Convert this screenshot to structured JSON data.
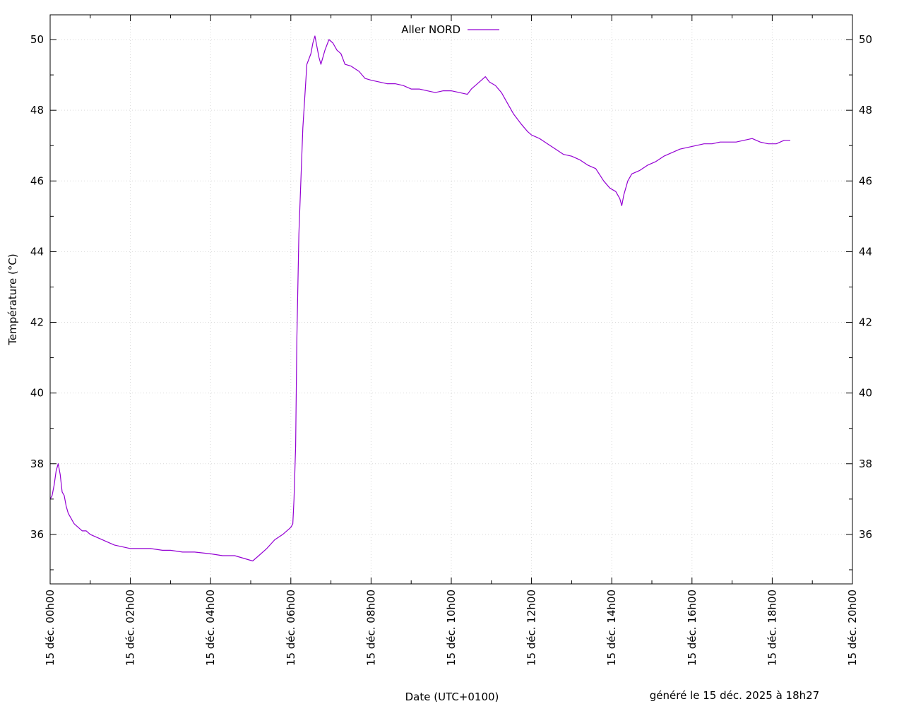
{
  "chart_data": {
    "type": "line",
    "xlabel": "Date (UTC+0100)",
    "ylabel": "Température (°C)",
    "footer": "généré le 15 déc. 2025 à 18h27",
    "xlim": [
      0,
      20
    ],
    "ylim": [
      34.6,
      50.7
    ],
    "x_ticks": [
      {
        "value": 0,
        "label": "15 déc. 00h00"
      },
      {
        "value": 2,
        "label": "15 déc. 02h00"
      },
      {
        "value": 4,
        "label": "15 déc. 04h00"
      },
      {
        "value": 6,
        "label": "15 déc. 06h00"
      },
      {
        "value": 8,
        "label": "15 déc. 08h00"
      },
      {
        "value": 10,
        "label": "15 déc. 10h00"
      },
      {
        "value": 12,
        "label": "15 déc. 12h00"
      },
      {
        "value": 14,
        "label": "15 déc. 14h00"
      },
      {
        "value": 16,
        "label": "15 déc. 16h00"
      },
      {
        "value": 18,
        "label": "15 déc. 18h00"
      },
      {
        "value": 20,
        "label": "15 déc. 20h00"
      }
    ],
    "y_ticks": [
      36,
      38,
      40,
      42,
      44,
      46,
      48,
      50
    ],
    "grid": true,
    "legend_position": "top-center",
    "series": [
      {
        "name": "Aller NORD",
        "color": "#9400d3",
        "x": [
          0.0,
          0.05,
          0.1,
          0.15,
          0.2,
          0.25,
          0.3,
          0.35,
          0.4,
          0.45,
          0.5,
          0.55,
          0.6,
          0.7,
          0.8,
          0.9,
          1.0,
          1.2,
          1.4,
          1.6,
          1.8,
          2.0,
          2.2,
          2.5,
          2.8,
          3.0,
          3.3,
          3.6,
          4.0,
          4.3,
          4.6,
          4.9,
          5.05,
          5.2,
          5.4,
          5.6,
          5.8,
          6.0,
          6.05,
          6.08,
          6.12,
          6.15,
          6.2,
          6.3,
          6.4,
          6.5,
          6.55,
          6.6,
          6.7,
          6.75,
          6.85,
          6.95,
          7.05,
          7.15,
          7.25,
          7.35,
          7.5,
          7.7,
          7.85,
          8.0,
          8.2,
          8.4,
          8.6,
          8.8,
          9.0,
          9.2,
          9.4,
          9.6,
          9.8,
          10.0,
          10.2,
          10.4,
          10.5,
          10.7,
          10.85,
          10.95,
          11.1,
          11.25,
          11.4,
          11.55,
          11.75,
          11.9,
          12.0,
          12.2,
          12.4,
          12.6,
          12.8,
          13.0,
          13.2,
          13.4,
          13.6,
          13.8,
          13.95,
          14.1,
          14.2,
          14.25,
          14.3,
          14.4,
          14.5,
          14.7,
          14.9,
          15.1,
          15.3,
          15.5,
          15.7,
          15.9,
          16.1,
          16.3,
          16.5,
          16.7,
          16.9,
          17.1,
          17.3,
          17.5,
          17.7,
          17.9,
          18.1,
          18.3,
          18.45
        ],
        "values": [
          37.0,
          37.1,
          37.4,
          37.8,
          38.0,
          37.7,
          37.2,
          37.1,
          36.8,
          36.6,
          36.5,
          36.4,
          36.3,
          36.2,
          36.1,
          36.1,
          36.0,
          35.9,
          35.8,
          35.7,
          35.65,
          35.6,
          35.6,
          35.6,
          35.55,
          35.55,
          35.5,
          35.5,
          35.45,
          35.4,
          35.4,
          35.3,
          35.25,
          35.4,
          35.6,
          35.85,
          36.0,
          36.2,
          36.3,
          37.0,
          38.5,
          41.5,
          44.5,
          47.5,
          49.3,
          49.6,
          49.9,
          50.1,
          49.5,
          49.3,
          49.7,
          50.0,
          49.9,
          49.7,
          49.6,
          49.3,
          49.25,
          49.1,
          48.9,
          48.85,
          48.8,
          48.75,
          48.75,
          48.7,
          48.6,
          48.6,
          48.55,
          48.5,
          48.55,
          48.55,
          48.5,
          48.45,
          48.6,
          48.8,
          48.95,
          48.8,
          48.7,
          48.5,
          48.2,
          47.9,
          47.6,
          47.4,
          47.3,
          47.2,
          47.05,
          46.9,
          46.75,
          46.7,
          46.6,
          46.45,
          46.35,
          46.0,
          45.8,
          45.7,
          45.5,
          45.3,
          45.6,
          46.0,
          46.2,
          46.3,
          46.45,
          46.55,
          46.7,
          46.8,
          46.9,
          46.95,
          47.0,
          47.05,
          47.05,
          47.1,
          47.1,
          47.1,
          47.15,
          47.2,
          47.1,
          47.05,
          47.05,
          47.15,
          47.15
        ]
      }
    ]
  }
}
